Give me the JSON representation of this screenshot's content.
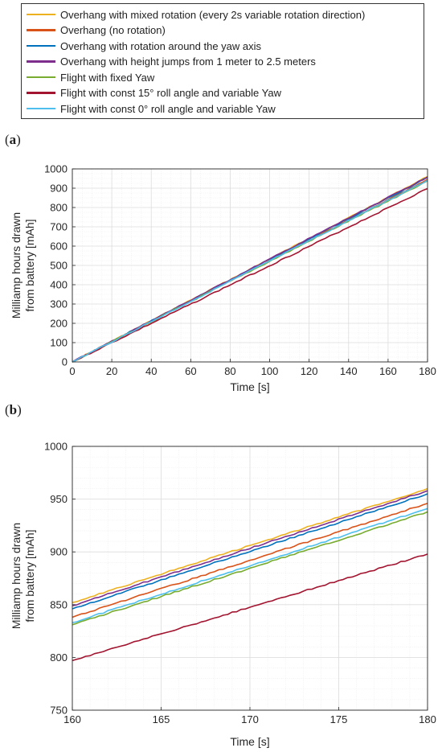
{
  "legend": {
    "items": [
      {
        "label": "Overhang with mixed rotation (every 2s variable rotation direction)",
        "color": "#EDB120"
      },
      {
        "label": "Overhang (no rotation)",
        "color": "#D95319"
      },
      {
        "label": "Overhang with rotation around the yaw axis",
        "color": "#0072BD"
      },
      {
        "label": "Overhang with height jumps from 1 meter to 2.5 meters",
        "color": "#7E2F8E"
      },
      {
        "label": "Flight with fixed Yaw",
        "color": "#77AC30"
      },
      {
        "label": "Flight with const 15° roll angle and variable Yaw",
        "color": "#A2142F"
      },
      {
        "label": "Flight with const 0° roll angle and variable Yaw",
        "color": "#4DBEEE"
      }
    ]
  },
  "panels": {
    "a": {
      "tag": "a",
      "xlabel": "Time [s]",
      "ylabel_line1": "Milliamp hours drawn",
      "ylabel_line2": "from battery [mAh]"
    },
    "b": {
      "tag": "b",
      "xlabel": "Time [s]",
      "ylabel_line1": "Milliamp hours drawn",
      "ylabel_line2": "from battery [mAh]"
    }
  },
  "chart_data": [
    {
      "type": "line",
      "panel": "a",
      "xlabel": "Time [s]",
      "ylabel": "Milliamp hours drawn from battery [mAh]",
      "xlim": [
        0,
        180
      ],
      "ylim": [
        0,
        1000
      ],
      "xticks": [
        0,
        20,
        40,
        60,
        80,
        100,
        120,
        140,
        160,
        180
      ],
      "yticks": [
        0,
        100,
        200,
        300,
        400,
        500,
        600,
        700,
        800,
        900,
        1000
      ],
      "grid": true,
      "series": [
        {
          "name": "Overhang with mixed rotation (every 2s variable rotation direction)",
          "color": "#EDB120",
          "x": [
            0,
            180
          ],
          "y": [
            0,
            960
          ]
        },
        {
          "name": "Overhang (no rotation)",
          "color": "#D95319",
          "x": [
            0,
            180
          ],
          "y": [
            0,
            946
          ]
        },
        {
          "name": "Overhang with rotation around the yaw axis",
          "color": "#0072BD",
          "x": [
            0,
            180
          ],
          "y": [
            0,
            955
          ]
        },
        {
          "name": "Overhang with height jumps from 1 meter to 2.5 meters",
          "color": "#7E2F8E",
          "x": [
            0,
            180
          ],
          "y": [
            0,
            958
          ]
        },
        {
          "name": "Flight with fixed Yaw",
          "color": "#77AC30",
          "x": [
            0,
            180
          ],
          "y": [
            0,
            938
          ]
        },
        {
          "name": "Flight with const 15° roll angle and variable Yaw",
          "color": "#A2142F",
          "x": [
            0,
            180
          ],
          "y": [
            0,
            898
          ]
        },
        {
          "name": "Flight with const 0° roll angle and variable Yaw",
          "color": "#4DBEEE",
          "x": [
            0,
            180
          ],
          "y": [
            0,
            941
          ]
        }
      ]
    },
    {
      "type": "line",
      "panel": "b",
      "xlabel": "Time [s]",
      "ylabel": "Milliamp hours drawn from battery [mAh]",
      "xlim": [
        160,
        180
      ],
      "ylim": [
        750,
        1000
      ],
      "xticks": [
        160,
        165,
        170,
        175,
        180
      ],
      "yticks": [
        750,
        800,
        850,
        900,
        950,
        1000
      ],
      "grid": true,
      "series": [
        {
          "name": "Overhang with mixed rotation (every 2s variable rotation direction)",
          "color": "#EDB120",
          "x": [
            160,
            180
          ],
          "y": [
            852,
            960
          ]
        },
        {
          "name": "Overhang (no rotation)",
          "color": "#D95319",
          "x": [
            160,
            180
          ],
          "y": [
            838,
            946
          ]
        },
        {
          "name": "Overhang with rotation around the yaw axis",
          "color": "#0072BD",
          "x": [
            160,
            180
          ],
          "y": [
            846,
            955
          ]
        },
        {
          "name": "Overhang with height jumps from 1 meter to 2.5 meters",
          "color": "#7E2F8E",
          "x": [
            160,
            180
          ],
          "y": [
            849,
            958
          ]
        },
        {
          "name": "Flight with fixed Yaw",
          "color": "#77AC30",
          "x": [
            160,
            180
          ],
          "y": [
            831,
            938
          ]
        },
        {
          "name": "Flight with const 15° roll angle and variable Yaw",
          "color": "#A2142F",
          "x": [
            160,
            180
          ],
          "y": [
            797,
            898
          ]
        },
        {
          "name": "Flight with const 0° roll angle and variable Yaw",
          "color": "#4DBEEE",
          "x": [
            160,
            180
          ],
          "y": [
            833,
            941
          ]
        }
      ]
    }
  ]
}
